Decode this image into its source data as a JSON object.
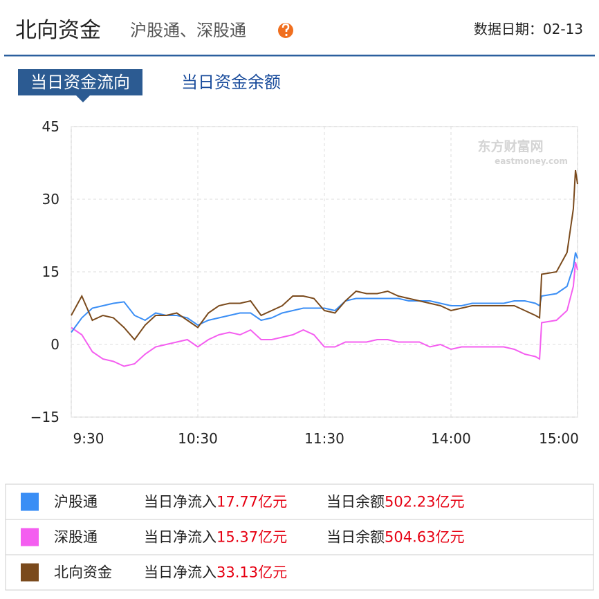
{
  "header": {
    "title": "北向资金",
    "subtitle": "沪股通、深股通",
    "date": "数据日期：02-13"
  },
  "tabs": [
    "当日资金流向",
    "当日资金余额"
  ],
  "watermark": {
    "name": "东方财富网",
    "url": "eastmoney.com"
  },
  "chart_data": {
    "type": "line",
    "x": [
      0,
      5,
      10,
      15,
      20,
      25,
      30,
      35,
      40,
      45,
      50,
      55,
      60,
      65,
      70,
      75,
      80,
      85,
      90,
      95,
      100,
      105,
      110,
      115,
      120,
      125,
      130,
      135,
      140,
      145,
      150,
      155,
      160,
      165,
      170,
      175,
      180,
      185,
      190,
      195,
      200,
      205,
      210,
      215,
      220,
      222,
      223,
      230,
      235,
      238,
      239,
      240
    ],
    "xlim": [
      0,
      240
    ],
    "xticks": [
      {
        "value": 0,
        "label": "9:30"
      },
      {
        "value": 60,
        "label": "10:30"
      },
      {
        "value": 120,
        "label": "11:30"
      },
      {
        "value": 180,
        "label": "14:00"
      },
      {
        "value": 240,
        "label": "15:00"
      }
    ],
    "ylim": [
      -15,
      45
    ],
    "yticks": [
      45,
      30,
      15,
      0,
      {
        "value": -15,
        "label": "−15"
      }
    ],
    "grid": true,
    "series": [
      {
        "name": "沪股通",
        "color": "#3a8ef5",
        "values": [
          2.5,
          5.5,
          7.5,
          8,
          8.5,
          8.8,
          6,
          5,
          6.5,
          6,
          6,
          5.5,
          4,
          5,
          5.5,
          6,
          6.5,
          6.5,
          5,
          5.5,
          6.5,
          7,
          7.5,
          7.5,
          7.5,
          7,
          9,
          9.5,
          9.5,
          9.5,
          9.5,
          9.5,
          9,
          9,
          9,
          8.5,
          8,
          8,
          8.5,
          8.5,
          8.5,
          8.5,
          9,
          9,
          8.5,
          8,
          10,
          10.5,
          12,
          16,
          19,
          17.77
        ]
      },
      {
        "name": "深股通",
        "color": "#f45ef0",
        "values": [
          3.5,
          2,
          -1.5,
          -3,
          -3.5,
          -4.5,
          -4,
          -2,
          -0.5,
          0,
          0.5,
          1,
          -0.5,
          1,
          2,
          2.5,
          2,
          3,
          1,
          1,
          1.5,
          2,
          3,
          2,
          -0.5,
          -0.5,
          0.5,
          0.5,
          0.5,
          1,
          1,
          0.5,
          0.5,
          0.5,
          -0.5,
          0,
          -1,
          -0.5,
          -0.5,
          -0.5,
          -0.5,
          -0.5,
          -1,
          -2,
          -2.5,
          -3,
          4.5,
          5,
          7,
          12,
          17,
          15.37
        ]
      },
      {
        "name": "北向资金",
        "color": "#7a4a1c",
        "values": [
          6,
          10,
          5,
          6,
          5.5,
          3.5,
          1,
          4,
          6,
          6,
          6.5,
          5,
          3.5,
          6.5,
          8,
          8.5,
          8.5,
          9,
          6,
          7,
          8,
          10,
          10,
          9.5,
          7,
          6.5,
          9,
          11,
          10.5,
          10.5,
          11,
          10,
          9.5,
          9,
          8.5,
          8,
          7,
          7.5,
          8,
          8,
          8,
          8,
          8,
          7,
          6,
          5.5,
          14.5,
          15,
          19,
          28,
          36,
          33.13
        ]
      }
    ]
  },
  "summary": [
    {
      "net_label": "当日净流入",
      "net": "17.77亿元",
      "balance_label": "当日余额",
      "balance": "502.23亿元"
    },
    {
      "net_label": "当日净流入",
      "net": "15.37亿元",
      "balance_label": "当日余额",
      "balance": "504.63亿元"
    },
    {
      "net_label": "当日净流入",
      "net": "33.13亿元"
    }
  ]
}
